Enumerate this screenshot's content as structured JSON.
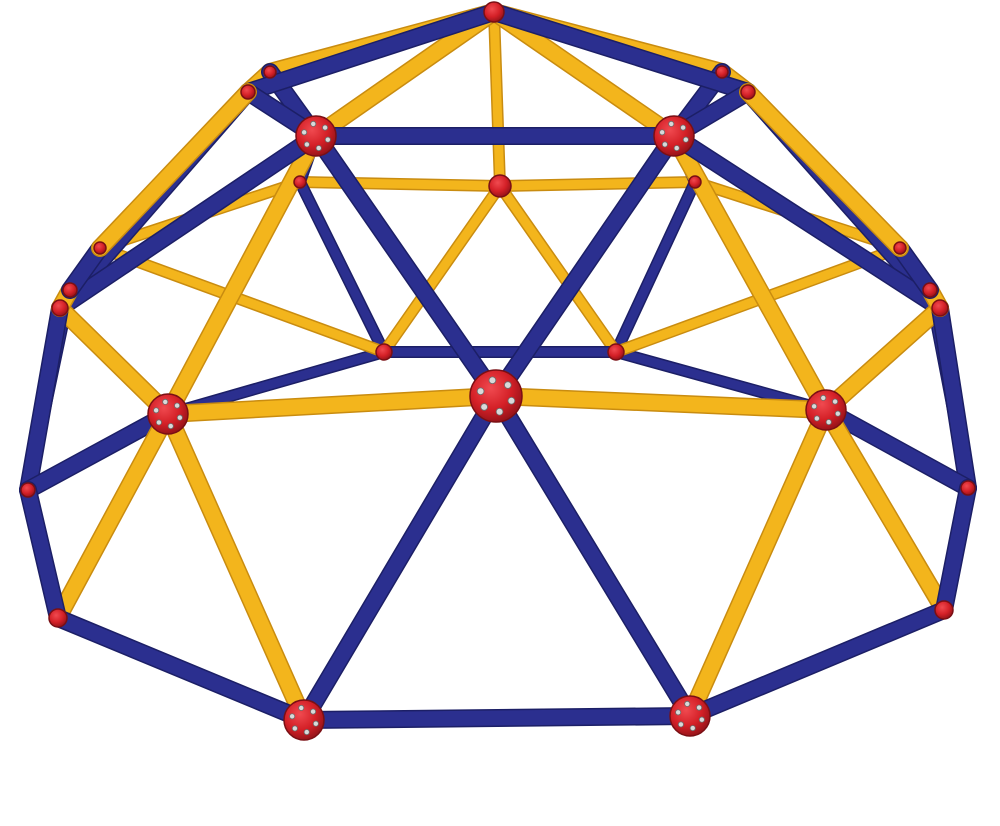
{
  "photo": {
    "subject": "geodesic-dome-climber",
    "colors": {
      "background": "#ffffff",
      "strut_blue": "#2b2f8f",
      "strut_blue_shade": "#1c1f66",
      "strut_yellow": "#f3b51c",
      "strut_yellow_shade": "#c98c10",
      "hub_red": "#d42027",
      "hub_red_dark": "#9a141a",
      "bolt": "#d9d9d9"
    }
  }
}
